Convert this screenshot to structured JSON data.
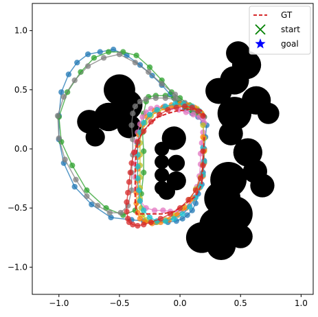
{
  "chart_data": {
    "type": "scatter",
    "title": "",
    "xlabel": "",
    "ylabel": "",
    "xlim": [
      -1.22,
      1.1
    ],
    "ylim": [
      -1.23,
      1.23
    ],
    "grid": false,
    "legend": {
      "placement": "top-right",
      "entries": [
        {
          "label": "GT",
          "style": "dashed-line",
          "color": "#d62728"
        },
        {
          "label": "start",
          "style": "x-marker",
          "color": "#008000"
        },
        {
          "label": "goal",
          "style": "star-marker",
          "color": "#0000ff"
        }
      ]
    },
    "xticks": [
      {
        "value": -1.0,
        "label": "−1.0"
      },
      {
        "value": -0.5,
        "label": "−0.5"
      },
      {
        "value": 0.0,
        "label": "0.0"
      },
      {
        "value": 0.5,
        "label": "0.5"
      },
      {
        "value": 1.0,
        "label": "1.0"
      }
    ],
    "yticks": [
      {
        "value": -1.0,
        "label": "−1.0"
      },
      {
        "value": -0.5,
        "label": "−0.5"
      },
      {
        "value": 0.0,
        "label": "0.0"
      },
      {
        "value": 0.5,
        "label": "0.5"
      },
      {
        "value": 1.0,
        "label": "1.0"
      }
    ],
    "obstacles": [
      {
        "cx": -0.5,
        "cy": 0.5,
        "r": 0.13
      },
      {
        "cx": -0.44,
        "cy": 0.37,
        "r": 0.13
      },
      {
        "cx": -0.59,
        "cy": 0.27,
        "r": 0.12
      },
      {
        "cx": -0.75,
        "cy": 0.23,
        "r": 0.1
      },
      {
        "cx": -0.7,
        "cy": 0.1,
        "r": 0.08
      },
      {
        "cx": -0.42,
        "cy": 0.19,
        "r": 0.1
      },
      {
        "cx": -0.05,
        "cy": 0.09,
        "r": 0.1
      },
      {
        "cx": -0.15,
        "cy": -0.0,
        "r": 0.06
      },
      {
        "cx": -0.15,
        "cy": -0.11,
        "r": 0.06
      },
      {
        "cx": -0.15,
        "cy": -0.22,
        "r": 0.06
      },
      {
        "cx": -0.15,
        "cy": -0.33,
        "r": 0.06
      },
      {
        "cx": -0.11,
        "cy": -0.36,
        "r": 0.07
      },
      {
        "cx": -0.03,
        "cy": -0.12,
        "r": 0.07
      },
      {
        "cx": -0.03,
        "cy": -0.27,
        "r": 0.08
      },
      {
        "cx": 0.48,
        "cy": 0.81,
        "r": 0.1
      },
      {
        "cx": 0.55,
        "cy": 0.71,
        "r": 0.12
      },
      {
        "cx": 0.45,
        "cy": 0.58,
        "r": 0.12
      },
      {
        "cx": 0.32,
        "cy": 0.49,
        "r": 0.11
      },
      {
        "cx": 0.63,
        "cy": 0.41,
        "r": 0.12
      },
      {
        "cx": 0.45,
        "cy": 0.3,
        "r": 0.14
      },
      {
        "cx": 0.73,
        "cy": 0.3,
        "r": 0.09
      },
      {
        "cx": 0.42,
        "cy": 0.13,
        "r": 0.1
      },
      {
        "cx": 0.56,
        "cy": -0.03,
        "r": 0.12
      },
      {
        "cx": 0.62,
        "cy": -0.19,
        "r": 0.1
      },
      {
        "cx": 0.68,
        "cy": -0.31,
        "r": 0.1
      },
      {
        "cx": 0.4,
        "cy": -0.26,
        "r": 0.15
      },
      {
        "cx": 0.35,
        "cy": -0.42,
        "r": 0.15
      },
      {
        "cx": 0.45,
        "cy": -0.55,
        "r": 0.15
      },
      {
        "cx": 0.3,
        "cy": -0.64,
        "r": 0.14
      },
      {
        "cx": 0.18,
        "cy": -0.75,
        "r": 0.13
      },
      {
        "cx": 0.34,
        "cy": -0.82,
        "r": 0.12
      },
      {
        "cx": 0.5,
        "cy": -0.74,
        "r": 0.1
      }
    ],
    "series": [
      {
        "name": "GT",
        "color": "#d62728",
        "style": "dashed-line",
        "x": [
          0.2,
          0.19,
          0.17,
          0.12,
          0.05,
          -0.03,
          -0.1,
          -0.18,
          -0.25,
          -0.31,
          -0.35,
          -0.36,
          -0.37,
          -0.37,
          -0.37,
          -0.37,
          -0.36,
          -0.28,
          -0.15,
          -0.05,
          0.05,
          0.13,
          0.18,
          0.19,
          0.2
        ],
        "y": [
          0.27,
          0.31,
          0.33,
          0.34,
          0.33,
          0.32,
          0.3,
          0.27,
          0.21,
          0.14,
          0.06,
          -0.04,
          -0.14,
          -0.24,
          -0.34,
          -0.44,
          -0.55,
          -0.55,
          -0.55,
          -0.53,
          -0.46,
          -0.4,
          -0.3,
          -0.1,
          0.1
        ]
      },
      {
        "name": "",
        "color": "#1f77b4",
        "style": "line-dots",
        "x": [
          0.22,
          0.21,
          0.2,
          0.2,
          0.19,
          0.18,
          0.15,
          0.13,
          0.1,
          0.06,
          0.02,
          -0.03,
          -0.1,
          -0.2,
          -0.3,
          -0.4,
          -0.57,
          -0.73,
          -0.87,
          -0.96,
          -1.0,
          -1.0,
          -0.98,
          -0.92,
          -0.85,
          -0.76,
          -0.66,
          -0.55,
          -0.44,
          -0.33,
          -0.23,
          -0.15,
          -0.08,
          -0.02,
          0.04,
          0.1,
          0.15,
          0.19
        ],
        "y": [
          0.2,
          0.1,
          0.0,
          -0.1,
          -0.2,
          -0.3,
          -0.38,
          -0.46,
          -0.52,
          -0.56,
          -0.59,
          -0.61,
          -0.62,
          -0.62,
          -0.61,
          -0.6,
          -0.58,
          -0.47,
          -0.32,
          -0.12,
          0.08,
          0.28,
          0.48,
          0.63,
          0.73,
          0.8,
          0.82,
          0.84,
          0.79,
          0.71,
          0.62,
          0.54,
          0.46,
          0.39,
          0.34,
          0.3,
          0.27,
          0.22
        ]
      },
      {
        "name": "",
        "color": "#2ca02c",
        "style": "line-dots",
        "x": [
          0.19,
          0.14,
          0.08,
          0.0,
          -0.07,
          -0.15,
          -0.25,
          -0.36,
          -0.47,
          -0.59,
          -0.71,
          -0.82,
          -0.93,
          -1.0,
          -0.98,
          -0.89,
          -0.77,
          -0.61,
          -0.47,
          -0.37,
          -0.32,
          -0.3,
          -0.3,
          -0.31,
          -0.3,
          -0.28,
          -0.26,
          -0.2,
          -0.12,
          -0.05,
          0.0,
          0.05,
          0.1,
          0.14,
          0.18,
          0.2
        ],
        "y": [
          0.28,
          0.33,
          0.37,
          0.43,
          0.48,
          0.58,
          0.69,
          0.79,
          0.82,
          0.82,
          0.77,
          0.65,
          0.48,
          0.27,
          0.06,
          -0.14,
          -0.35,
          -0.5,
          -0.56,
          -0.52,
          -0.38,
          -0.2,
          -0.02,
          0.14,
          0.3,
          0.4,
          0.44,
          0.45,
          0.45,
          0.43,
          0.39,
          0.35,
          0.32,
          0.3,
          0.28,
          0.27
        ]
      },
      {
        "name": "",
        "color": "#7f7f7f",
        "style": "line-dots",
        "x": [
          0.2,
          0.12,
          0.04,
          -0.04,
          -0.15,
          -0.26,
          -0.37,
          -0.5,
          -0.63,
          -0.76,
          -0.87,
          -0.96,
          -1.01,
          -1.0,
          -0.95,
          -0.86,
          -0.77,
          -0.68,
          -0.58,
          -0.49,
          -0.43,
          -0.4,
          -0.4,
          -0.39,
          -0.39,
          -0.4,
          -0.39,
          -0.37,
          -0.33,
          -0.28,
          -0.2,
          -0.12,
          -0.04,
          0.04,
          0.11,
          0.17
        ],
        "y": [
          0.27,
          0.32,
          0.38,
          0.46,
          0.55,
          0.65,
          0.73,
          0.8,
          0.77,
          0.7,
          0.58,
          0.44,
          0.28,
          0.09,
          -0.09,
          -0.26,
          -0.4,
          -0.48,
          -0.54,
          -0.54,
          -0.48,
          -0.35,
          -0.2,
          -0.05,
          0.08,
          0.2,
          0.3,
          0.36,
          0.4,
          0.42,
          0.43,
          0.43,
          0.42,
          0.39,
          0.34,
          0.29
        ]
      },
      {
        "name": "",
        "color": "#e377c2",
        "style": "line-dots",
        "x": [
          0.2,
          0.19,
          0.18,
          0.17,
          0.17,
          0.16,
          0.14,
          0.12,
          0.08,
          0.03,
          -0.02,
          -0.08,
          -0.14,
          -0.21,
          -0.28,
          -0.33,
          -0.36,
          -0.37,
          -0.37,
          -0.37,
          -0.36,
          -0.35,
          -0.33,
          -0.31,
          -0.28,
          -0.24,
          -0.19,
          -0.13,
          -0.07,
          -0.01,
          0.05,
          0.11,
          0.16,
          0.19
        ],
        "y": [
          0.22,
          0.14,
          0.05,
          -0.04,
          -0.13,
          -0.23,
          -0.32,
          -0.41,
          -0.48,
          -0.52,
          -0.53,
          -0.53,
          -0.52,
          -0.52,
          -0.5,
          -0.44,
          -0.34,
          -0.24,
          -0.13,
          -0.03,
          0.06,
          0.14,
          0.21,
          0.27,
          0.31,
          0.34,
          0.35,
          0.36,
          0.35,
          0.33,
          0.31,
          0.29,
          0.27,
          0.25
        ]
      },
      {
        "name": "",
        "color": "#bcbd22",
        "style": "line-dots",
        "x": [
          0.18,
          0.14,
          0.09,
          0.03,
          -0.04,
          -0.11,
          -0.18,
          -0.24,
          -0.29,
          -0.32,
          -0.33,
          -0.33,
          -0.33,
          -0.33,
          -0.33,
          -0.33,
          -0.32,
          -0.31,
          -0.28,
          -0.24,
          -0.19,
          -0.12,
          -0.05,
          0.02,
          0.08,
          0.13,
          0.17,
          0.19,
          0.2,
          0.2,
          0.19
        ],
        "y": [
          0.3,
          0.34,
          0.36,
          0.37,
          0.36,
          0.34,
          0.32,
          0.28,
          0.22,
          0.14,
          0.05,
          -0.05,
          -0.14,
          -0.24,
          -0.33,
          -0.42,
          -0.5,
          -0.56,
          -0.6,
          -0.62,
          -0.62,
          -0.6,
          -0.56,
          -0.5,
          -0.43,
          -0.34,
          -0.24,
          -0.13,
          -0.02,
          0.09,
          0.2
        ]
      },
      {
        "name": "",
        "color": "#ff7f0e",
        "style": "line-dots",
        "x": [
          0.17,
          0.12,
          0.06,
          0.0,
          -0.07,
          -0.14,
          -0.21,
          -0.27,
          -0.31,
          -0.34,
          -0.35,
          -0.35,
          -0.35,
          -0.35,
          -0.36,
          -0.36,
          -0.35,
          -0.33,
          -0.29,
          -0.23,
          -0.16,
          -0.09,
          -0.02,
          0.05,
          0.11,
          0.16,
          0.19,
          0.2,
          0.2,
          0.19
        ],
        "y": [
          0.31,
          0.35,
          0.37,
          0.38,
          0.37,
          0.35,
          0.32,
          0.27,
          0.2,
          0.12,
          0.03,
          -0.07,
          -0.17,
          -0.27,
          -0.37,
          -0.46,
          -0.54,
          -0.59,
          -0.62,
          -0.63,
          -0.62,
          -0.6,
          -0.56,
          -0.5,
          -0.42,
          -0.33,
          -0.23,
          -0.12,
          -0.01,
          0.1
        ]
      },
      {
        "name": "",
        "color": "#17becf",
        "style": "line-dots",
        "x": [
          0.16,
          0.1,
          0.03,
          -0.04,
          -0.12,
          -0.19,
          -0.25,
          -0.3,
          -0.33,
          -0.35,
          -0.35,
          -0.35,
          -0.35,
          -0.34,
          -0.33,
          -0.3,
          -0.25,
          -0.19,
          -0.12,
          -0.05,
          0.02,
          0.08,
          0.13,
          0.17,
          0.19,
          0.2,
          0.19
        ],
        "y": [
          0.32,
          0.36,
          0.38,
          0.38,
          0.36,
          0.33,
          0.29,
          0.22,
          0.14,
          0.05,
          -0.05,
          -0.15,
          -0.25,
          -0.35,
          -0.44,
          -0.52,
          -0.58,
          -0.61,
          -0.61,
          -0.59,
          -0.55,
          -0.49,
          -0.41,
          -0.32,
          -0.22,
          -0.11,
          0.01
        ]
      },
      {
        "name": "",
        "color": "#d62728",
        "style": "line-dots",
        "x": [
          0.19,
          0.15,
          0.1,
          0.04,
          -0.03,
          -0.1,
          -0.17,
          -0.24,
          -0.3,
          -0.35,
          -0.38,
          -0.4,
          -0.41,
          -0.42,
          -0.43,
          -0.44,
          -0.44,
          -0.43,
          -0.42,
          -0.39,
          -0.35,
          -0.3,
          -0.24,
          -0.16,
          -0.08,
          0.0,
          0.07,
          0.13,
          0.17,
          0.19,
          0.19
        ],
        "y": [
          0.28,
          0.32,
          0.35,
          0.36,
          0.35,
          0.33,
          0.29,
          0.23,
          0.15,
          0.06,
          -0.03,
          -0.12,
          -0.2,
          -0.28,
          -0.37,
          -0.45,
          -0.53,
          -0.59,
          -0.62,
          -0.64,
          -0.65,
          -0.64,
          -0.62,
          -0.59,
          -0.55,
          -0.5,
          -0.43,
          -0.35,
          -0.25,
          -0.14,
          -0.02
        ]
      }
    ]
  }
}
